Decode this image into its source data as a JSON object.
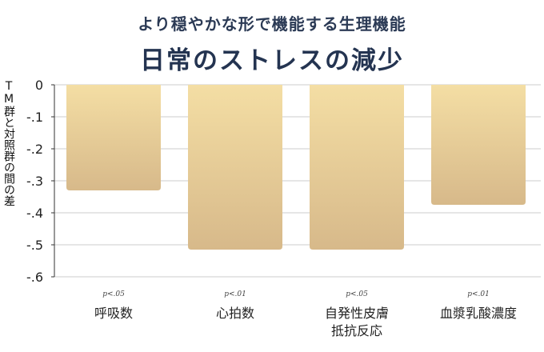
{
  "chart_data": {
    "type": "bar",
    "subtitle": "より穏やかな形で機能する生理機能",
    "title": "日常のストレスの減少",
    "ylabel": "TM群と対照群の間の差",
    "ylim": [
      -0.6,
      0
    ],
    "yticks": [
      0,
      -0.1,
      -0.2,
      -0.3,
      -0.4,
      -0.5,
      -0.6
    ],
    "ytick_labels": [
      "0",
      "-.1",
      "-.2",
      "-.3",
      "-.4",
      "-.5",
      "-.6"
    ],
    "categories": [
      "呼吸数",
      "心拍数",
      "自発性皮膚抵抗反応",
      "血漿乳酸濃度"
    ],
    "category_lines": [
      [
        "呼吸数"
      ],
      [
        "心拍数"
      ],
      [
        "自発性皮膚",
        "抵抗反応"
      ],
      [
        "血漿乳酸濃度"
      ]
    ],
    "values": [
      -0.33,
      -0.515,
      -0.515,
      -0.375
    ],
    "significance": [
      "p<.05",
      "p<.01",
      "p<.05",
      "p<.01"
    ],
    "grid": true,
    "colors": {
      "bar_top": "#f4dea4",
      "bar_bottom": "#d7b98a",
      "grid": "#cccccc",
      "axis": "#333333"
    }
  }
}
